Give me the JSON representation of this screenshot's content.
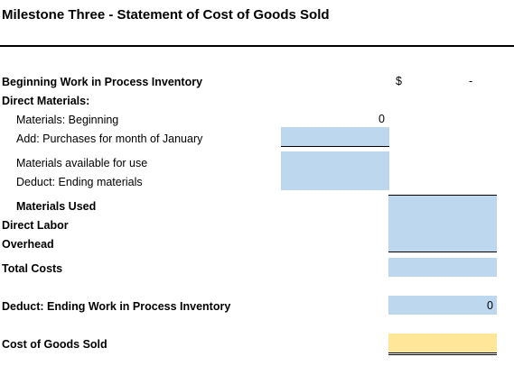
{
  "title": "Milestone Three - Statement of Cost of Goods Sold",
  "rows": {
    "beginning_wip": "Beginning Work in Process Inventory",
    "direct_materials": "Direct Materials:",
    "materials_beginning": "Materials: Beginning",
    "purchases": "Add: Purchases for month of January",
    "materials_available": "Materials available for use",
    "ending_materials": "Deduct: Ending materials",
    "materials_used": "Materials Used",
    "direct_labor": "Direct Labor",
    "overhead": "Overhead",
    "total_costs": "Total Costs",
    "ending_wip": "Deduct: Ending Work in Process Inventory",
    "cogs": "Cost of Goods Sold"
  },
  "values": {
    "currency_symbol": "$",
    "beginning_wip_value": "-",
    "materials_beginning_value": "0",
    "ending_wip_value": "0"
  },
  "colors": {
    "input_cell": "#bdd7ee",
    "result_cell": "#ffe699"
  }
}
